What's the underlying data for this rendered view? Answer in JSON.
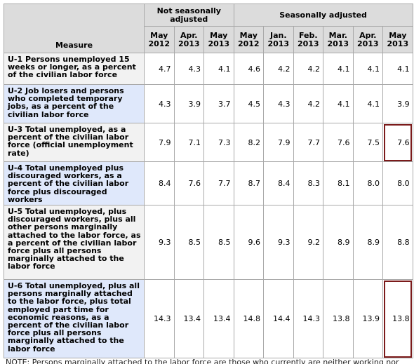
{
  "table": {
    "header": {
      "measure": "Measure",
      "groups": [
        "Not seasonally adjusted",
        "Seasonally adjusted"
      ],
      "columns": [
        {
          "month": "May",
          "year": "2012"
        },
        {
          "month": "Apr.",
          "year": "2013"
        },
        {
          "month": "May",
          "year": "2013"
        },
        {
          "month": "May",
          "year": "2012"
        },
        {
          "month": "Jan.",
          "year": "2013"
        },
        {
          "month": "Feb.",
          "year": "2013"
        },
        {
          "month": "Mar.",
          "year": "2013"
        },
        {
          "month": "Apr.",
          "year": "2013"
        },
        {
          "month": "May",
          "year": "2013"
        }
      ]
    },
    "rows": [
      {
        "measure": "U-1 Persons unemployed 15 weeks or longer, as a percent of the civilian labor force",
        "values": [
          "4.7",
          "4.3",
          "4.1",
          "4.6",
          "4.2",
          "4.2",
          "4.1",
          "4.1",
          "4.1"
        ]
      },
      {
        "measure": "U-2 Job losers and persons who completed temporary jobs, as a percent of the civilian labor force",
        "values": [
          "4.3",
          "3.9",
          "3.7",
          "4.5",
          "4.3",
          "4.2",
          "4.1",
          "4.1",
          "3.9"
        ]
      },
      {
        "measure": "U-3 Total unemployed, as a percent of the civilian labor force (official unemployment rate)",
        "values": [
          "7.9",
          "7.1",
          "7.3",
          "8.2",
          "7.9",
          "7.7",
          "7.6",
          "7.5",
          "7.6"
        ]
      },
      {
        "measure": "U-4 Total unemployed plus discouraged workers, as a percent of the civilian labor force plus discouraged workers",
        "values": [
          "8.4",
          "7.6",
          "7.7",
          "8.7",
          "8.4",
          "8.3",
          "8.1",
          "8.0",
          "8.0"
        ]
      },
      {
        "measure": "U-5 Total unemployed, plus discouraged workers, plus all other persons marginally attached to the labor force, as a percent of the civilian labor force plus all persons marginally attached to the labor force",
        "values": [
          "9.3",
          "8.5",
          "8.5",
          "9.6",
          "9.3",
          "9.2",
          "8.9",
          "8.9",
          "8.8"
        ]
      },
      {
        "measure": "U-6 Total unemployed, plus all persons marginally attached to the labor force, plus total employed part time for economic reasons, as a percent of the civilian labor force plus all persons marginally attached to the labor force",
        "values": [
          "14.3",
          "13.4",
          "13.4",
          "14.8",
          "14.4",
          "14.3",
          "13.8",
          "13.9",
          "13.8"
        ]
      }
    ],
    "note": "NOTE: Persons marginally attached to the labor force are those who currently are neither working nor"
  }
}
